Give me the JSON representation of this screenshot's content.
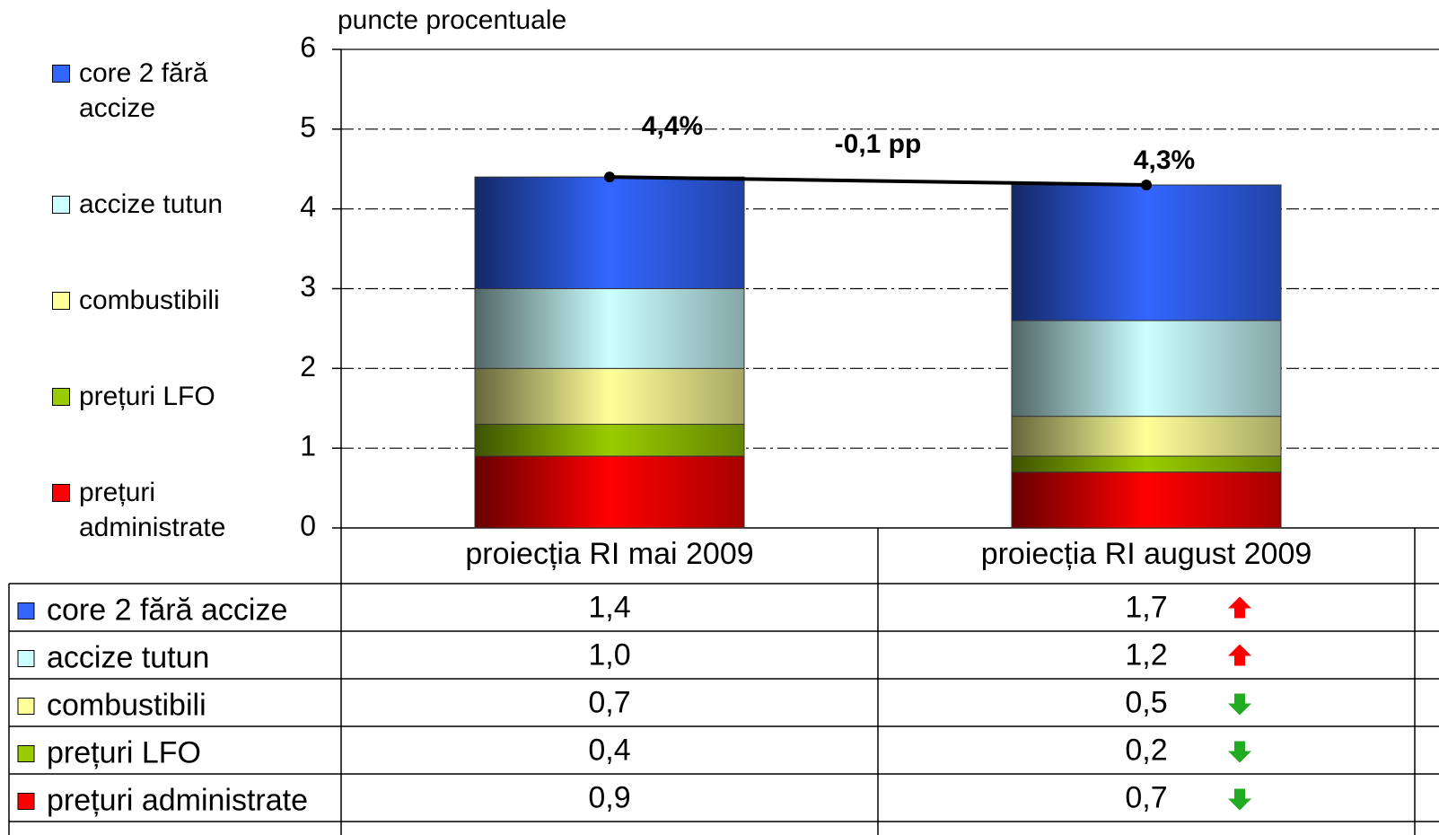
{
  "chart_data": {
    "type": "stacked_bar",
    "y_label": "puncte procentuale",
    "categories": [
      "proiecția RI mai 2009",
      "proiecția RI august 2009"
    ],
    "series": [
      {
        "name": "prețuri administrate",
        "color": "#ff0000",
        "values": [
          0.9,
          0.7
        ],
        "value_labels": [
          "0,9",
          "0,7"
        ]
      },
      {
        "name": "prețuri LFO",
        "color": "#99cc00",
        "values": [
          0.4,
          0.2
        ],
        "value_labels": [
          "0,4",
          "0,2"
        ]
      },
      {
        "name": "combustibili",
        "color": "#ffff99",
        "values": [
          0.7,
          0.5
        ],
        "value_labels": [
          "0,7",
          "0,5"
        ]
      },
      {
        "name": "accize tutun",
        "color": "#ccffff",
        "values": [
          1.0,
          1.2
        ],
        "value_labels": [
          "1,0",
          "1,2"
        ]
      },
      {
        "name": "core 2 fără accize",
        "color": "#3366ff",
        "values": [
          1.4,
          1.7
        ],
        "value_labels": [
          "1,4",
          "1,7"
        ]
      }
    ],
    "total": {
      "values": [
        4.4,
        4.3
      ],
      "value_labels": [
        "4,4%",
        "4,3%"
      ],
      "color": "#000000"
    },
    "annotation": "-0,1 pp",
    "ylim": [
      0,
      6
    ],
    "yticks": [
      0,
      1,
      2,
      3,
      4,
      5,
      6
    ],
    "grid": true
  }
}
